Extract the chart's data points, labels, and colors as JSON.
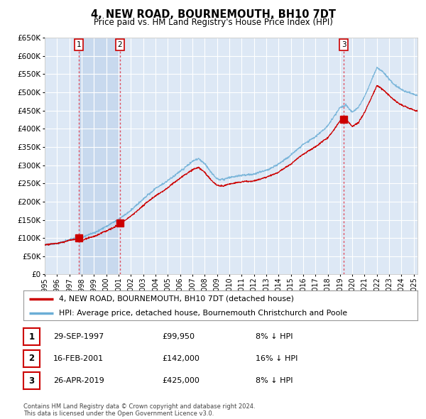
{
  "title": "4, NEW ROAD, BOURNEMOUTH, BH10 7DT",
  "subtitle": "Price paid vs. HM Land Registry's House Price Index (HPI)",
  "ylim": [
    0,
    650000
  ],
  "yticks": [
    0,
    50000,
    100000,
    150000,
    200000,
    250000,
    300000,
    350000,
    400000,
    450000,
    500000,
    550000,
    600000,
    650000
  ],
  "background_color": "#ffffff",
  "plot_bg_color": "#dde8f5",
  "shaded_region_color": "#c8d9ee",
  "grid_color": "#ffffff",
  "sale_points": [
    {
      "date_num": 1997.75,
      "price": 99950,
      "label": "1"
    },
    {
      "date_num": 2001.12,
      "price": 142000,
      "label": "2"
    },
    {
      "date_num": 2019.32,
      "price": 425000,
      "label": "3"
    }
  ],
  "vline_color": "#e05060",
  "sale_marker_color": "#cc0000",
  "hpi_line_color": "#6baed6",
  "price_line_color": "#cc0000",
  "legend_entries": [
    "4, NEW ROAD, BOURNEMOUTH, BH10 7DT (detached house)",
    "HPI: Average price, detached house, Bournemouth Christchurch and Poole"
  ],
  "table_rows": [
    [
      "1",
      "29-SEP-1997",
      "£99,950",
      "8% ↓ HPI"
    ],
    [
      "2",
      "16-FEB-2001",
      "£142,000",
      "16% ↓ HPI"
    ],
    [
      "3",
      "26-APR-2019",
      "£425,000",
      "8% ↓ HPI"
    ]
  ],
  "footer": "Contains HM Land Registry data © Crown copyright and database right 2024.\nThis data is licensed under the Open Government Licence v3.0.",
  "xmin": 1995.0,
  "xmax": 2025.3
}
